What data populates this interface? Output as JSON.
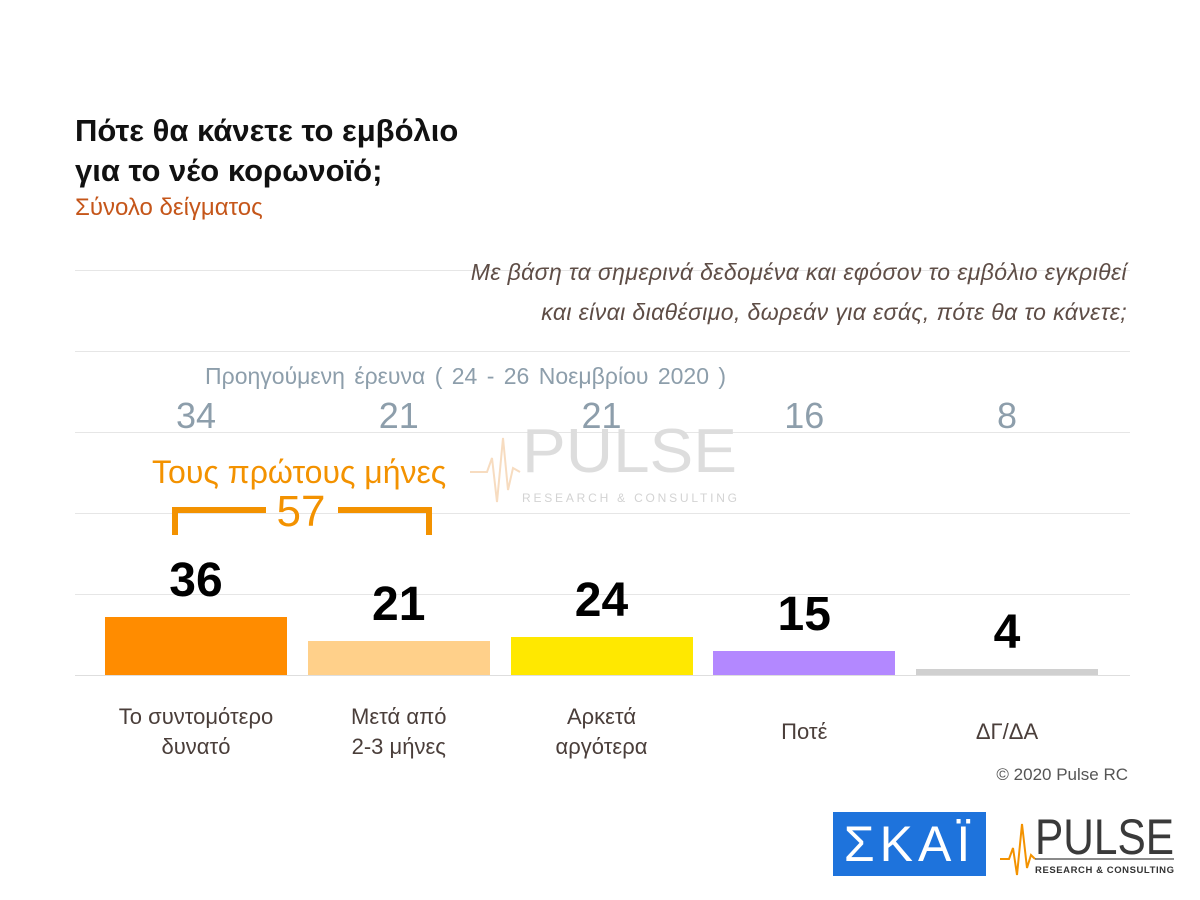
{
  "chart_data": {
    "type": "bar",
    "title": "Πότε θα κάνετε το εμβόλιο\nγια το νέο κορωνοϊό;",
    "subtitle": "Σύνολο δείγματος",
    "question": "Με βάση τα σημερινά δεδομένα και εφόσον το εμβόλιο εγκριθεί\nκαι είναι διαθέσιμο, δωρεάν για εσάς, πότε θα το κάνετε;",
    "categories": [
      "Το συντομότερο\nδυνατό",
      "Μετά από\n2-3 μήνες",
      "Αρκετά\nαργότερα",
      "Ποτέ",
      "ΔΓ/ΔΑ"
    ],
    "series": [
      {
        "values": [
          36,
          21,
          24,
          15,
          4
        ],
        "colors": [
          "#ff8c00",
          "#ffd08a",
          "#ffe800",
          "#b388ff",
          "#d0d0d0"
        ]
      },
      {
        "name": "Προηγούμενη έρευνα ( 24 - 26 Νοεμβρίου 2020 )",
        "values": [
          34,
          21,
          21,
          16,
          8
        ],
        "color": "#8d9eab"
      }
    ],
    "annotation": {
      "label": "Τους πρώτους μήνες",
      "value": 57,
      "color": "#f39200"
    },
    "grid": true,
    "legend": "none"
  },
  "copyright": "© 2020 Pulse RC",
  "watermark": {
    "name": "PULSE",
    "tagline": "RESEARCH & CONSULTING"
  },
  "logos": {
    "skai": {
      "text": "ΣΚΑΪ",
      "color": "#1e73dc"
    },
    "pulse": {
      "text": "PULSE",
      "tagline": "RESEARCH & CONSULTING",
      "accent": "#f39200"
    }
  },
  "colors": {
    "title": "#111111",
    "subtitle": "#c5561a",
    "question": "#5e4d46",
    "category_label": "#4a3e3a",
    "value_label": "#000000"
  }
}
